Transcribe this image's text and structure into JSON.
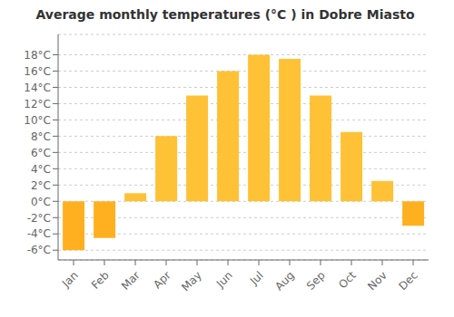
{
  "chart_data": {
    "type": "bar",
    "title": "Average monthly temperatures (°C ) in Dobre Miasto",
    "categories": [
      "Jan",
      "Feb",
      "Mar",
      "Apr",
      "May",
      "Jun",
      "Jul",
      "Aug",
      "Sep",
      "Oct",
      "Nov",
      "Dec"
    ],
    "values": [
      -6.0,
      -4.5,
      1.0,
      8.0,
      13.0,
      16.0,
      18.0,
      17.5,
      13.0,
      8.5,
      2.5,
      -3.0
    ],
    "colors": [
      "#FFB020",
      "#FFB020",
      "#FFC135",
      "#FFC135",
      "#FFC135",
      "#FFC135",
      "#FFC135",
      "#FFC135",
      "#FFC135",
      "#FFC135",
      "#FFC135",
      "#FFB020"
    ],
    "ylim": [
      -7.2,
      20.5
    ],
    "yticks": [
      {
        "value": -6,
        "label": "-6°C"
      },
      {
        "value": -4,
        "label": "-4°C"
      },
      {
        "value": -2,
        "label": "-2°C"
      },
      {
        "value": 0,
        "label": "0°C"
      },
      {
        "value": 2,
        "label": "2°C"
      },
      {
        "value": 4,
        "label": "4°C"
      },
      {
        "value": 6,
        "label": "6°C"
      },
      {
        "value": 8,
        "label": "8°C"
      },
      {
        "value": 10,
        "label": "10°C"
      },
      {
        "value": 12,
        "label": "12°C"
      },
      {
        "value": 14,
        "label": "14°C"
      },
      {
        "value": 16,
        "label": "16°C"
      },
      {
        "value": 18,
        "label": "18°C"
      }
    ],
    "grid": true
  }
}
